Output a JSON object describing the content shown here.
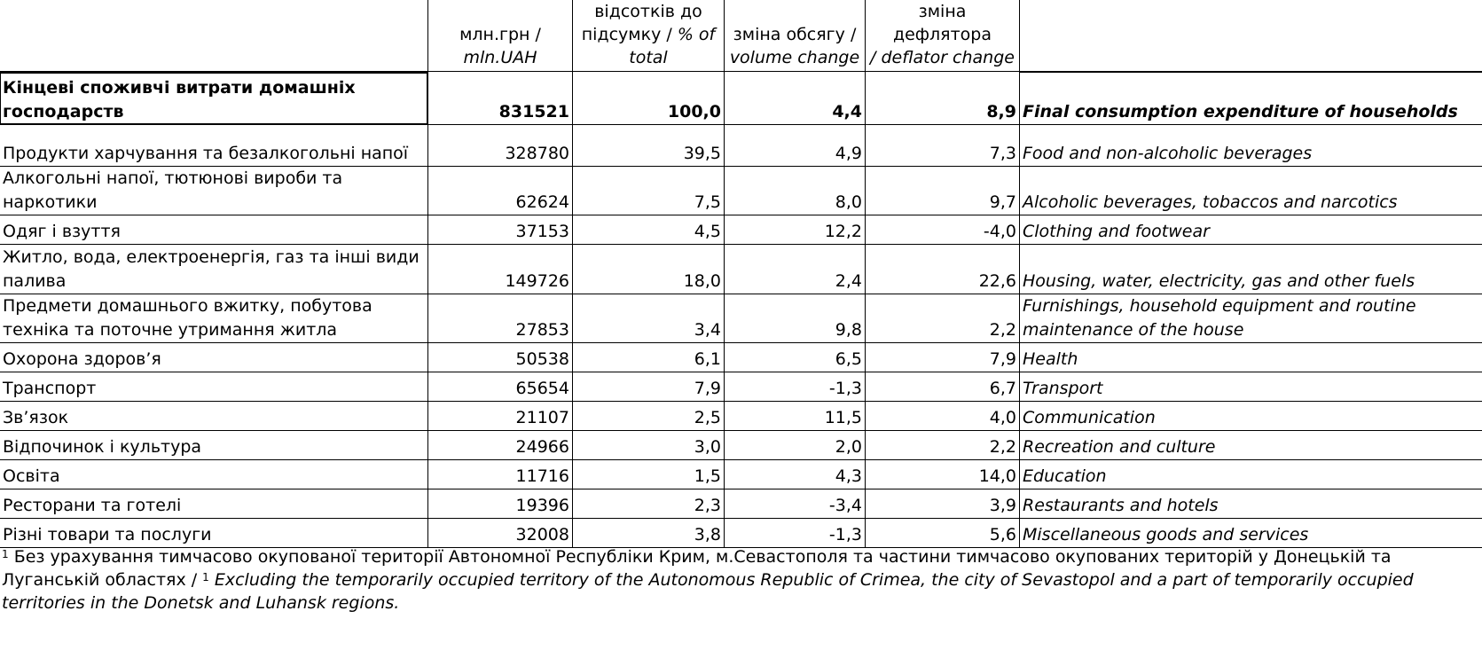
{
  "header": {
    "col_value": {
      "ua": "млн.грн /",
      "en": "mln.UAH"
    },
    "col_share": {
      "ua": "відсотків до підсумку /",
      "en": "% of total"
    },
    "col_volume": {
      "ua": "зміна обсягу /",
      "en": "volume change"
    },
    "col_deflator": {
      "ua": "зміна дефлятора",
      "en": "/ deflator change"
    }
  },
  "total": {
    "ua": "Кінцеві споживчі витрати домашніх господарств",
    "value": "831521",
    "share": "100,0",
    "volume": "4,4",
    "deflator": "8,9",
    "en": "Final consumption expenditure of households"
  },
  "rows": [
    {
      "ua": "Продукти харчування та безалкогольні напої",
      "value": "328780",
      "share": "39,5",
      "volume": "4,9",
      "deflator": "7,3",
      "en": "Food and non-alcoholic beverages"
    },
    {
      "ua": "Алкогольні напої, тютюнові вироби та наркотики",
      "value": "62624",
      "share": "7,5",
      "volume": "8,0",
      "deflator": "9,7",
      "en": "Alcoholic beverages, tobaccos and narcotics"
    },
    {
      "ua": "Одяг і взуття",
      "value": "37153",
      "share": "4,5",
      "volume": "12,2",
      "deflator": "-4,0",
      "en": "Clothing and footwear"
    },
    {
      "ua": "Житло, вода, електроенергія, газ та інші види палива",
      "value": "149726",
      "share": "18,0",
      "volume": "2,4",
      "deflator": "22,6",
      "en": "Housing, water, electricity, gas and other fuels"
    },
    {
      "ua": "Предмети домашнього вжитку, побутова техніка та поточне утримання житла",
      "value": "27853",
      "share": "3,4",
      "volume": "9,8",
      "deflator": "2,2",
      "en": "Furnishings, household equipment and routine maintenance of the house"
    },
    {
      "ua": "Охорона здоров’я",
      "value": "50538",
      "share": "6,1",
      "volume": "6,5",
      "deflator": "7,9",
      "en": "Health"
    },
    {
      "ua": "Транспорт",
      "value": "65654",
      "share": "7,9",
      "volume": "-1,3",
      "deflator": "6,7",
      "en": "Transport"
    },
    {
      "ua": "Зв’язок",
      "value": "21107",
      "share": "2,5",
      "volume": "11,5",
      "deflator": "4,0",
      "en": "Communication"
    },
    {
      "ua": "Відпочинок і культура",
      "value": "24966",
      "share": "3,0",
      "volume": "2,0",
      "deflator": "2,2",
      "en": "Recreation and culture"
    },
    {
      "ua": "Освіта",
      "value": "11716",
      "share": "1,5",
      "volume": "4,3",
      "deflator": "14,0",
      "en": "Education"
    },
    {
      "ua": "Ресторани та готелі",
      "value": "19396",
      "share": "2,3",
      "volume": "-3,4",
      "deflator": "3,9",
      "en": "Restaurants and hotels"
    },
    {
      "ua": "Різні товари та послуги",
      "value": "32008",
      "share": "3,8",
      "volume": "-1,3",
      "deflator": "5,6",
      "en": "Miscellaneous goods and services"
    }
  ],
  "footnote": {
    "mark": "1",
    "ua": "Без урахування тимчасово окупованої території Автономної Республіки Крим, м.Севастополя та частини тимчасово окупованих територій у Донецькій та Луганській областях /",
    "en": "Excluding the temporarily occupied territory of the Autonomous Republic of Crimea, the city of Sevastopol and a part of temporarily occupied territories in the Donetsk and Luhansk regions."
  }
}
